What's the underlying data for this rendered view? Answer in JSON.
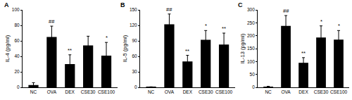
{
  "chart_data": [
    {
      "type": "bar",
      "title": "A",
      "y_label": "IL-4 (pg/ml)",
      "categories": [
        "NC",
        "OVA",
        "DEX",
        "CSE30",
        "CSE100"
      ],
      "values": [
        3,
        65,
        30,
        54,
        41
      ],
      "errors": [
        3,
        14,
        12,
        12,
        17
      ],
      "color": "#000000",
      "ylim": [
        0,
        100
      ],
      "yticks": [
        0,
        20,
        40,
        60,
        80,
        100
      ],
      "annotations": [
        {
          "category": "OVA",
          "text": "##"
        },
        {
          "category": "DEX",
          "text": "**"
        },
        {
          "category": "CSE100",
          "text": "*"
        }
      ]
    },
    {
      "type": "bar",
      "title": "B",
      "y_label": "IL-5 (pg/ml)",
      "categories": [
        "NC",
        "OVA",
        "DEX",
        "CSE30",
        "CSE100"
      ],
      "values": [
        0.5,
        122,
        50,
        92,
        83
      ],
      "errors": [
        0.5,
        20,
        12,
        18,
        22
      ],
      "color": "#000000",
      "ylim": [
        0,
        150
      ],
      "yticks": [
        0,
        30,
        60,
        90,
        120,
        150
      ],
      "annotations": [
        {
          "category": "OVA",
          "text": "##"
        },
        {
          "category": "DEX",
          "text": "**"
        },
        {
          "category": "CSE30",
          "text": "*"
        },
        {
          "category": "CSE100",
          "text": "**"
        }
      ]
    },
    {
      "type": "bar",
      "title": "C",
      "y_label": "IL-13 (pg/ml)",
      "categories": [
        "NC",
        "OVA",
        "DEX",
        "CSE30",
        "CSE100"
      ],
      "values": [
        2,
        238,
        95,
        193,
        185
      ],
      "errors": [
        2,
        40,
        20,
        45,
        35
      ],
      "color": "#000000",
      "ylim": [
        0,
        300
      ],
      "yticks": [
        0,
        50,
        100,
        150,
        200,
        250,
        300
      ],
      "annotations": [
        {
          "category": "OVA",
          "text": "##"
        },
        {
          "category": "DEX",
          "text": "**"
        },
        {
          "category": "CSE30",
          "text": "*"
        },
        {
          "category": "CSE100",
          "text": "*"
        }
      ]
    }
  ]
}
